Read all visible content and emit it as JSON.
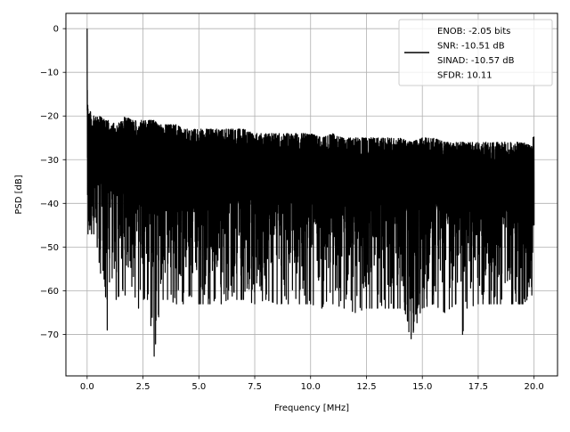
{
  "chart_data": {
    "type": "line",
    "title": "",
    "xlabel": "Frequency [MHz]",
    "ylabel": "PSD [dB]",
    "xlim": [
      -0.95,
      21.05
    ],
    "ylim": [
      -79.5,
      3.5
    ],
    "xticks": [
      0.0,
      2.5,
      5.0,
      7.5,
      10.0,
      12.5,
      15.0,
      17.5,
      20.0
    ],
    "xtick_labels": [
      "0.0",
      "2.5",
      "5.0",
      "7.5",
      "10.0",
      "12.5",
      "15.0",
      "17.5",
      "20.0"
    ],
    "yticks": [
      0,
      -10,
      -20,
      -30,
      -40,
      -50,
      -60,
      -70
    ],
    "ytick_labels": [
      "0",
      "−10",
      "−20",
      "−30",
      "−40",
      "−50",
      "−60",
      "−70"
    ],
    "grid": true,
    "legend": {
      "placement": "top-right",
      "lines": [
        "ENOB: -2.05 bits",
        "SNR: -10.51 dB",
        "SINAD: -10.57 dB",
        "SFDR: 10.11"
      ]
    },
    "series": [
      {
        "color": "#000000",
        "x": [
          0.0,
          0.02,
          0.04,
          0.06,
          0.08,
          0.1,
          0.12,
          0.15,
          0.2,
          0.3,
          0.45,
          0.6,
          0.8,
          0.9,
          1.0,
          1.3,
          1.6,
          1.7,
          2.0,
          2.3,
          2.7,
          3.0,
          3.2,
          3.4,
          3.6,
          4.0,
          4.3,
          4.6,
          5.0,
          5.5,
          6.0,
          6.3,
          6.7,
          7.0,
          7.5,
          8.0,
          8.5,
          9.0,
          9.5,
          10.0,
          10.5,
          11.0,
          11.5,
          12.0,
          12.5,
          13.0,
          13.5,
          14.0,
          14.5,
          15.0,
          15.5,
          16.0,
          16.5,
          16.8,
          17.0,
          17.5,
          18.0,
          18.5,
          19.0,
          19.5,
          19.9,
          20.0
        ],
        "upper": [
          0,
          -15,
          -18,
          -20,
          -19,
          -20,
          -19,
          -19,
          -20,
          -20,
          -20,
          -20,
          -21,
          -21,
          -21,
          -22,
          -21,
          -20,
          -21,
          -21,
          -21,
          -21,
          -22,
          -22,
          -22,
          -22,
          -23,
          -23,
          -23,
          -23,
          -23,
          -23,
          -23,
          -23,
          -24,
          -24,
          -24,
          -24,
          -24,
          -24,
          -25,
          -24,
          -25,
          -25,
          -25,
          -25,
          -25,
          -25,
          -26,
          -25,
          -25,
          -26,
          -26,
          -26,
          -26,
          -26,
          -26,
          -26,
          -26,
          -26,
          -27,
          -23
        ],
        "lower": [
          -32,
          -38,
          -47,
          -42,
          -44,
          -45,
          -46,
          -45,
          -47,
          -47,
          -50,
          -56,
          -59,
          -69,
          -58,
          -62,
          -60,
          -61,
          -59,
          -64,
          -62,
          -75,
          -66,
          -62,
          -62,
          -63,
          -63,
          -61,
          -63,
          -63,
          -63,
          -62,
          -62,
          -62,
          -63,
          -62,
          -63,
          -63,
          -63,
          -63,
          -64,
          -63,
          -64,
          -65,
          -64,
          -64,
          -64,
          -64,
          -71,
          -64,
          -63,
          -65,
          -63,
          -70,
          -64,
          -63,
          -63,
          -63,
          -63,
          -63,
          -61,
          -45
        ]
      }
    ]
  }
}
